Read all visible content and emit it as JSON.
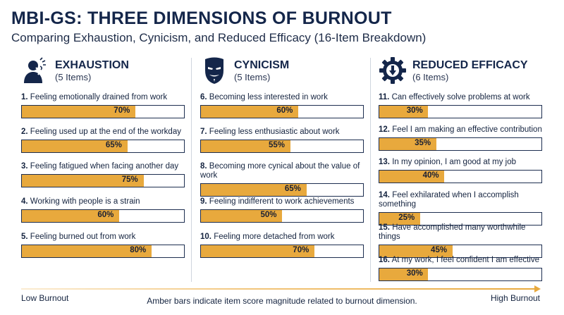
{
  "title": "MBI-GS: THREE DIMENSIONS OF BURNOUT",
  "subtitle": "Comparing Exhaustion, Cynicism, and Reduced Efficacy (16-Item Breakdown)",
  "colors": {
    "bar": "#e8a93d",
    "navy": "#14264a",
    "track_border": "#1d2e50"
  },
  "chart_data": {
    "type": "bar",
    "orientation": "horizontal",
    "xlim": [
      0,
      100
    ],
    "unit": "%",
    "panels": [
      {
        "title": "EXHAUSTION",
        "subtitle": "(5 Items)",
        "icon": "stressed-person-icon",
        "items": [
          {
            "num": "1.",
            "text": "Feeling emotionally drained from work",
            "value": 70,
            "value_label": "70%"
          },
          {
            "num": "2.",
            "text": "Feeling used up at the end of the workday",
            "value": 65,
            "value_label": "65%"
          },
          {
            "num": "3.",
            "text": "Feeling fatigued when facing another day",
            "value": 75,
            "value_label": "75%"
          },
          {
            "num": "4.",
            "text": "Working with people is a strain",
            "value": 60,
            "value_label": "60%"
          },
          {
            "num": "5.",
            "text": "Feeling burned out from work",
            "value": 80,
            "value_label": "80%"
          }
        ]
      },
      {
        "title": "CYNICISM",
        "subtitle": "(5 Items)",
        "icon": "mask-icon",
        "items": [
          {
            "num": "6.",
            "text": "Becoming less interested in work",
            "value": 60,
            "value_label": "60%"
          },
          {
            "num": "7.",
            "text": "Feeling less enthusiastic about work",
            "value": 55,
            "value_label": "55%"
          },
          {
            "num": "8.",
            "text": "Becoming more cynical about the value of work",
            "value": 65,
            "value_label": "65%"
          },
          {
            "num": "9.",
            "text": "Feeling indifferent to work achievements",
            "value": 50,
            "value_label": "50%"
          },
          {
            "num": "10.",
            "text": "Feeling more detached from work",
            "value": 70,
            "value_label": "70%"
          }
        ]
      },
      {
        "title": "REDUCED EFFICACY",
        "subtitle": "(6 Items)",
        "icon": "gear-down-arrow-icon",
        "items": [
          {
            "num": "11.",
            "text": "Can effectively solve problems at work",
            "value": 30,
            "value_label": "30%"
          },
          {
            "num": "12.",
            "text": "Feel I am making an effective contribution",
            "value": 35,
            "value_label": "35%"
          },
          {
            "num": "13.",
            "text": "In my opinion, I am good at my job",
            "value": 40,
            "value_label": "40%"
          },
          {
            "num": "14.",
            "text": "Feel exhilarated when I accomplish something",
            "value": 25,
            "value_label": "25%"
          },
          {
            "num": "15.",
            "text": "Have accomplished many worthwhile things",
            "value": 45,
            "value_label": "45%"
          },
          {
            "num": "16.",
            "text": "At my work, I feel confident I am effective",
            "value": 30,
            "value_label": "30%"
          }
        ]
      }
    ],
    "axis": {
      "low_label": "Low Burnout",
      "high_label": "High Burnout"
    },
    "note": "Amber bars indicate item score magnitude related to burnout dimension."
  }
}
